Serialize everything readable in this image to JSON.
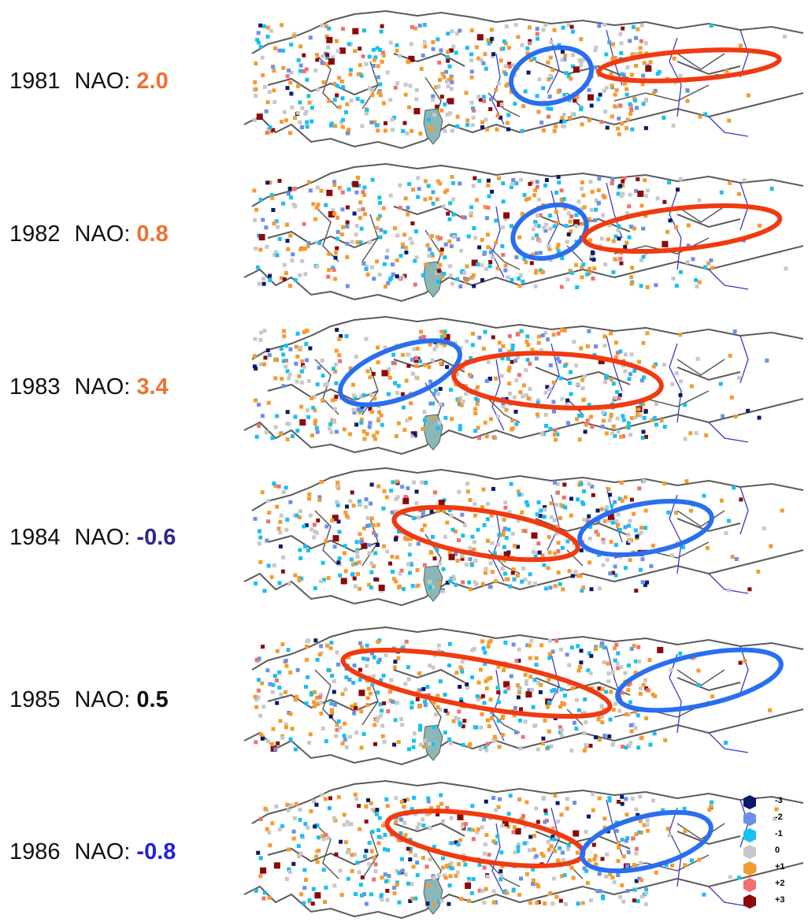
{
  "rows": [
    {
      "year": "1981",
      "nao_label": "NAO:",
      "nao_value": "2.0",
      "nao_color": "#f07030",
      "circles": [
        {
          "kind": "blue"
        },
        {
          "kind": "red"
        }
      ]
    },
    {
      "year": "1982",
      "nao_label": "NAO:",
      "nao_value": "0.8",
      "nao_color": "#f07030",
      "circles": [
        {
          "kind": "blue"
        },
        {
          "kind": "red"
        }
      ]
    },
    {
      "year": "1983",
      "nao_label": "NAO:",
      "nao_value": "3.4",
      "nao_color": "#f07030",
      "circles": [
        {
          "kind": "blue"
        },
        {
          "kind": "red"
        }
      ]
    },
    {
      "year": "1984",
      "nao_label": "NAO:",
      "nao_value": "-0.6",
      "nao_color": "#2a2a8a",
      "circles": [
        {
          "kind": "red"
        },
        {
          "kind": "blue"
        }
      ]
    },
    {
      "year": "1985",
      "nao_label": "NAO:",
      "nao_value": "0.5",
      "nao_color": "#111111",
      "circles": [
        {
          "kind": "red"
        },
        {
          "kind": "blue"
        }
      ]
    },
    {
      "year": "1986",
      "nao_label": "NAO:",
      "nao_value": "-0.8",
      "nao_color": "#2020e0",
      "circles": [
        {
          "kind": "red"
        },
        {
          "kind": "blue"
        }
      ]
    }
  ],
  "legend": [
    {
      "label": "-3",
      "color": "#0a1a6a"
    },
    {
      "label": "-2",
      "color": "#6a90e8"
    },
    {
      "label": "-1",
      "color": "#18c0f0"
    },
    {
      "label": "0",
      "color": "#c8c8c8"
    },
    {
      "label": "+1",
      "color": "#f59a30"
    },
    {
      "label": "+2",
      "color": "#f07070"
    },
    {
      "label": "+3",
      "color": "#8a0a0a"
    }
  ],
  "colors": {
    "circle_blue": "#2a6ef0",
    "circle_red": "#f03a10",
    "coast": "#5a5a5a",
    "river": "#3a3ac8",
    "sea": "#8ab8b8"
  }
}
